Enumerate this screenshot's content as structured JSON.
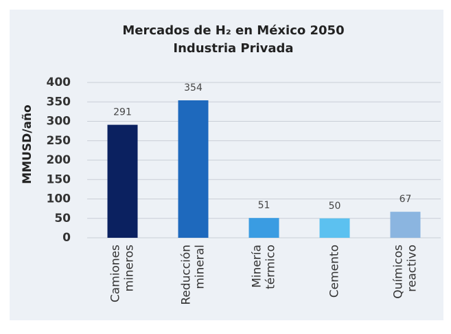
{
  "chart_data": {
    "type": "bar",
    "title": "Mercados de H₂ en México 2050",
    "subtitle": "Industria Privada",
    "y_label": "MMUSD/año",
    "categories": [
      [
        "Camiones",
        "mineros"
      ],
      [
        "Reducción",
        "mineral"
      ],
      [
        "Minería",
        "térmico"
      ],
      [
        "Cemento"
      ],
      [
        "Químicos",
        "reactivo"
      ]
    ],
    "values": [
      291,
      354,
      51,
      50,
      67
    ],
    "colors": [
      "#0b2160",
      "#1e69bd",
      "#3a9ce2",
      "#5cc1f0",
      "#8bb5e0"
    ],
    "ylim": [
      0,
      400
    ],
    "yticks": [
      0,
      50,
      100,
      150,
      200,
      250,
      300,
      350,
      400
    ],
    "grid": true
  }
}
